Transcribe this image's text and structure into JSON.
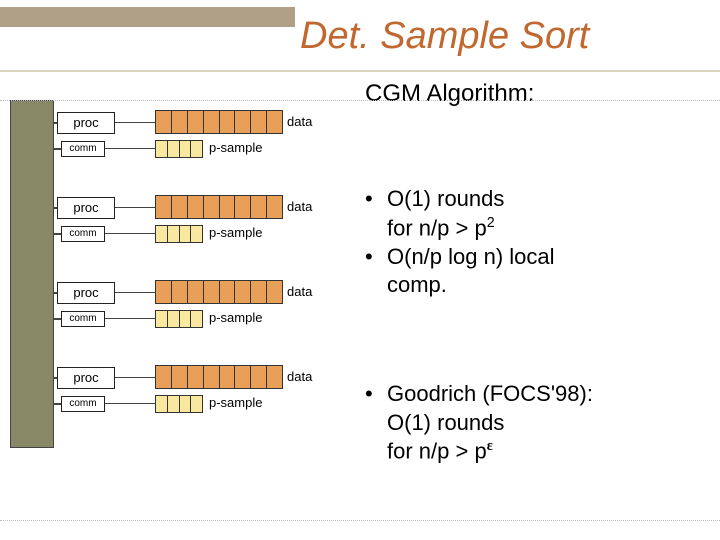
{
  "title": "Det. Sample Sort",
  "subtitle": "CGM Algorithm:",
  "bullets_group1": {
    "b1": "O(1) rounds",
    "b1_cont": "for n/p > p",
    "b1_sup": "2",
    "b2": "O(n/p log n) local",
    "b2_cont": "comp."
  },
  "bullets_group2": {
    "b3": "Goodrich (FOCS'98):",
    "b3_cont1": "O(1) rounds",
    "b3_cont2_prefix": "for n/p > p",
    "b3_eps": "ε"
  },
  "diagram": {
    "vert_bar_color": "#888866",
    "unit_count": 4,
    "proc_label": "proc",
    "comm_label": "comm",
    "data_label": "data",
    "psample_label": "p-sample",
    "data_bar_color": "#e8a058",
    "psample_bar_color": "#f8e8a0",
    "data_segments": 8,
    "psample_segments": 4,
    "unit_spacing": 85
  },
  "colors": {
    "title": "#c06830",
    "header_bar": "#b0a088",
    "text": "#000000",
    "background": "#ffffff"
  }
}
